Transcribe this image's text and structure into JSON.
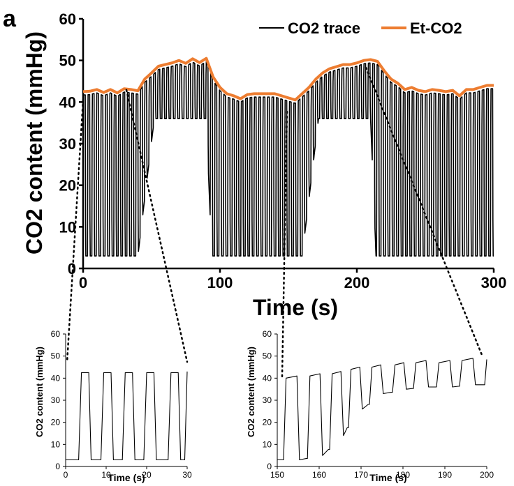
{
  "panel_label": "a",
  "chart_data": [
    {
      "type": "line",
      "ylabel": "CO2 content (mmHg)",
      "xlabel": "Time (s)",
      "xlim": [
        0,
        300
      ],
      "ylim": [
        0,
        60
      ],
      "xticks": [
        "0",
        "100",
        "200",
        "300"
      ],
      "yticks": [
        "0",
        "10",
        "20",
        "30",
        "40",
        "50",
        "60"
      ],
      "grid": false,
      "legend_position": "top-right",
      "colors": {
        "trace": "#000000",
        "etco2": "#ED7D31"
      },
      "series": [
        {
          "name": "CO2 trace",
          "style": "oscillating capnogram, ~0.6 Hz breathing, low ~3 mmHg, peaks follow Et-CO2; trough plateau rises to ~36 mmHg during 50–90 s and 170–210 s"
        },
        {
          "name": "Et-CO2",
          "x": [
            0,
            5,
            10,
            15,
            20,
            25,
            30,
            35,
            40,
            45,
            50,
            55,
            60,
            65,
            70,
            75,
            80,
            85,
            90,
            95,
            100,
            105,
            110,
            115,
            120,
            125,
            130,
            135,
            140,
            145,
            150,
            155,
            160,
            165,
            170,
            175,
            180,
            185,
            190,
            195,
            200,
            205,
            210,
            215,
            220,
            225,
            230,
            235,
            240,
            245,
            250,
            255,
            260,
            265,
            270,
            275,
            280,
            285,
            290,
            295,
            300
          ],
          "y": [
            42.5,
            42.6,
            43,
            42.3,
            43,
            42.2,
            43.2,
            43,
            42.7,
            45.5,
            47,
            48.6,
            49,
            49.4,
            50,
            49.3,
            50.4,
            49.5,
            50.5,
            46,
            43.5,
            42,
            41.5,
            40.8,
            41.8,
            42,
            42,
            42,
            42,
            41.5,
            41,
            40.5,
            42,
            43.5,
            45.5,
            47,
            48,
            48.5,
            49,
            49,
            49.4,
            50,
            50.2,
            49.8,
            47.5,
            45.5,
            44.5,
            43,
            43.5,
            42.8,
            42.5,
            43,
            42.8,
            42.5,
            42.8,
            41.5,
            43,
            43,
            43.5,
            44,
            44
          ]
        }
      ]
    },
    {
      "type": "line",
      "ylabel": "CO2 content (mmHg)",
      "xlabel": "Time (s)",
      "xlim": [
        0,
        30
      ],
      "ylim": [
        0,
        60
      ],
      "xticks": [
        "0",
        "10",
        "20",
        "30"
      ],
      "yticks": [
        "0",
        "10",
        "20",
        "30",
        "40",
        "50",
        "60"
      ],
      "series": [
        {
          "name": "CO2 trace",
          "peaks_x": [
            3.5,
            9,
            14.3,
            19.6,
            25.6
          ],
          "high": 42.5,
          "low": 3,
          "end_value": 43
        }
      ]
    },
    {
      "type": "line",
      "ylabel": "CO2 content (mmHg)",
      "xlabel": "Time (s)",
      "xlim": [
        150,
        200
      ],
      "ylim": [
        0,
        60
      ],
      "xticks": [
        "150",
        "160",
        "170",
        "180",
        "190",
        "200"
      ],
      "yticks": [
        "0",
        "10",
        "20",
        "30",
        "40",
        "50",
        "60"
      ],
      "series": [
        {
          "name": "CO2 trace",
          "cycles": [
            {
              "start": 151.5,
              "end": 155,
              "peak": 41,
              "low": 3
            },
            {
              "start": 157.2,
              "end": 160.5,
              "peak": 42,
              "low": 5
            },
            {
              "start": 162.5,
              "end": 165.5,
              "peak": 43,
              "low": 14
            },
            {
              "start": 167,
              "end": 170,
              "peak": 45,
              "low": 26
            },
            {
              "start": 172,
              "end": 175,
              "peak": 46,
              "low": 33
            },
            {
              "start": 177.5,
              "end": 180.5,
              "peak": 47,
              "low": 35
            },
            {
              "start": 182.5,
              "end": 185.8,
              "peak": 48,
              "low": 36
            },
            {
              "start": 188,
              "end": 191.5,
              "peak": 48,
              "low": 36
            },
            {
              "start": 193.5,
              "end": 197,
              "peak": 49,
              "low": 37
            }
          ],
          "end_value": 48.5
        }
      ]
    }
  ]
}
